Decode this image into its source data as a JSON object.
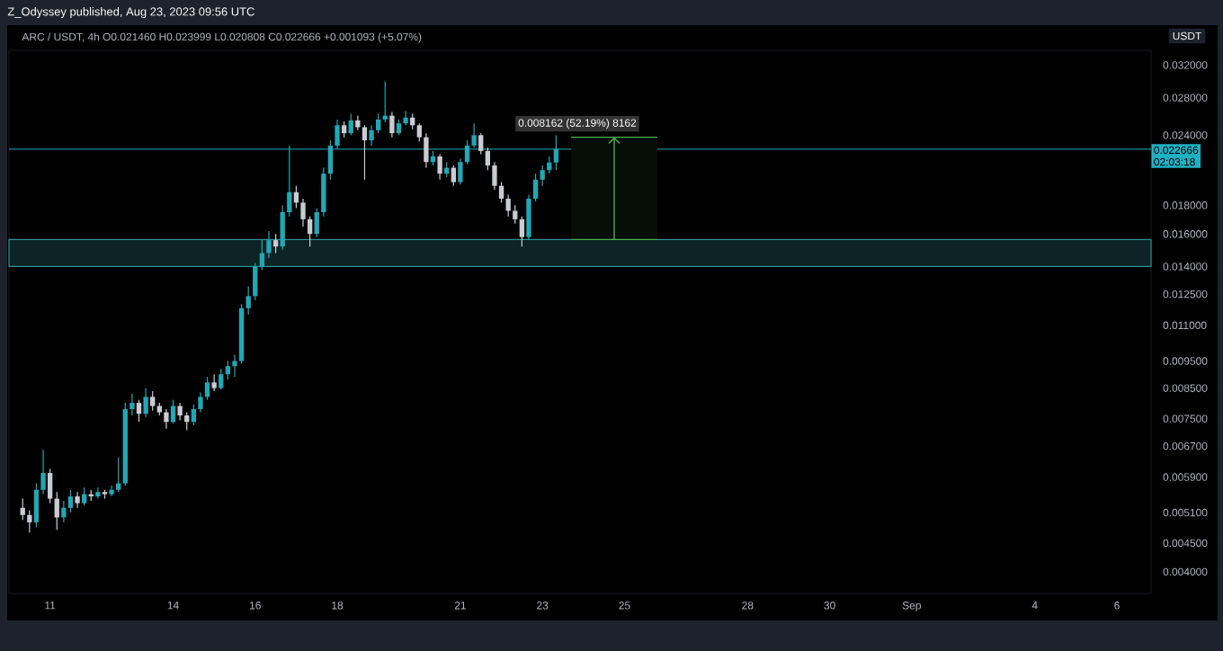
{
  "chart_data": {
    "type": "candlestick",
    "title": "Z_Odyssey published, Aug 23, 2023 09:56 UTC",
    "subtitle": "ARC / USDT, 4h  O0.021460  H0.023999  L0.020808  C0.022666  +0.001093 (+5.07%)",
    "ylabel": "USDT",
    "log": true,
    "x": [
      "2023-08-10T08:00",
      "2023-08-10T12:00",
      "2023-08-10T16:00",
      "2023-08-10T20:00",
      "2023-08-11T00:00",
      "2023-08-11T04:00",
      "2023-08-11T08:00",
      "2023-08-11T12:00",
      "2023-08-11T16:00",
      "2023-08-11T20:00",
      "2023-08-12T00:00",
      "2023-08-12T04:00",
      "2023-08-12T08:00",
      "2023-08-12T12:00",
      "2023-08-12T16:00",
      "2023-08-12T20:00",
      "2023-08-13T00:00",
      "2023-08-13T04:00",
      "2023-08-13T08:00",
      "2023-08-13T12:00",
      "2023-08-13T16:00",
      "2023-08-13T20:00",
      "2023-08-14T00:00",
      "2023-08-14T04:00",
      "2023-08-14T08:00",
      "2023-08-14T12:00",
      "2023-08-14T16:00",
      "2023-08-14T20:00",
      "2023-08-15T00:00",
      "2023-08-15T04:00",
      "2023-08-15T08:00",
      "2023-08-15T12:00",
      "2023-08-15T16:00",
      "2023-08-15T20:00",
      "2023-08-16T00:00",
      "2023-08-16T04:00",
      "2023-08-16T08:00",
      "2023-08-16T12:00",
      "2023-08-16T16:00",
      "2023-08-16T20:00",
      "2023-08-17T00:00",
      "2023-08-17T04:00",
      "2023-08-17T08:00",
      "2023-08-17T12:00",
      "2023-08-17T16:00",
      "2023-08-17T20:00",
      "2023-08-18T00:00",
      "2023-08-18T04:00",
      "2023-08-18T08:00",
      "2023-08-18T12:00",
      "2023-08-18T16:00",
      "2023-08-18T20:00",
      "2023-08-19T00:00",
      "2023-08-19T04:00",
      "2023-08-19T08:00",
      "2023-08-19T12:00",
      "2023-08-19T16:00",
      "2023-08-19T20:00",
      "2023-08-20T00:00",
      "2023-08-20T04:00",
      "2023-08-20T08:00",
      "2023-08-20T12:00",
      "2023-08-20T16:00",
      "2023-08-20T20:00",
      "2023-08-21T00:00",
      "2023-08-21T04:00",
      "2023-08-21T08:00",
      "2023-08-21T12:00",
      "2023-08-21T16:00",
      "2023-08-21T20:00",
      "2023-08-22T00:00",
      "2023-08-22T04:00",
      "2023-08-22T08:00",
      "2023-08-22T12:00",
      "2023-08-22T16:00",
      "2023-08-22T20:00",
      "2023-08-23T00:00",
      "2023-08-23T04:00",
      "2023-08-23T08:00"
    ],
    "ohlc": [
      [
        0.0052,
        0.0054,
        0.00495,
        0.00505
      ],
      [
        0.00505,
        0.00515,
        0.0047,
        0.0049
      ],
      [
        0.0049,
        0.00575,
        0.0048,
        0.0056
      ],
      [
        0.0056,
        0.0066,
        0.0055,
        0.006
      ],
      [
        0.006,
        0.0061,
        0.0053,
        0.0054
      ],
      [
        0.0054,
        0.00555,
        0.00475,
        0.005
      ],
      [
        0.005,
        0.00535,
        0.0049,
        0.0052
      ],
      [
        0.0052,
        0.0056,
        0.0051,
        0.00545
      ],
      [
        0.00545,
        0.00555,
        0.0052,
        0.0053
      ],
      [
        0.0053,
        0.00565,
        0.00525,
        0.0055
      ],
      [
        0.0055,
        0.0056,
        0.00535,
        0.00545
      ],
      [
        0.00545,
        0.00565,
        0.0054,
        0.00555
      ],
      [
        0.00555,
        0.0056,
        0.0054,
        0.0055
      ],
      [
        0.0055,
        0.0057,
        0.00545,
        0.0056
      ],
      [
        0.0056,
        0.0064,
        0.00555,
        0.00575
      ],
      [
        0.00575,
        0.008,
        0.0057,
        0.0078
      ],
      [
        0.0078,
        0.0083,
        0.0076,
        0.008
      ],
      [
        0.008,
        0.0081,
        0.0074,
        0.00765
      ],
      [
        0.00765,
        0.0085,
        0.00755,
        0.0082
      ],
      [
        0.0082,
        0.0084,
        0.00775,
        0.0079
      ],
      [
        0.0079,
        0.008,
        0.0076,
        0.0077
      ],
      [
        0.0077,
        0.0078,
        0.0072,
        0.0074
      ],
      [
        0.0074,
        0.0081,
        0.00735,
        0.0079
      ],
      [
        0.0079,
        0.008,
        0.00745,
        0.0076
      ],
      [
        0.0076,
        0.0077,
        0.00715,
        0.0074
      ],
      [
        0.0074,
        0.00795,
        0.0073,
        0.0078
      ],
      [
        0.0078,
        0.00835,
        0.0077,
        0.0082
      ],
      [
        0.0082,
        0.0089,
        0.0081,
        0.0087
      ],
      [
        0.0087,
        0.009,
        0.0084,
        0.0085
      ],
      [
        0.0085,
        0.0092,
        0.00845,
        0.009
      ],
      [
        0.009,
        0.0095,
        0.0088,
        0.0093
      ],
      [
        0.0093,
        0.00975,
        0.0089,
        0.0095
      ],
      [
        0.0095,
        0.012,
        0.0094,
        0.0118
      ],
      [
        0.0118,
        0.0129,
        0.0115,
        0.0124
      ],
      [
        0.0124,
        0.0142,
        0.0122,
        0.014
      ],
      [
        0.014,
        0.0156,
        0.0138,
        0.0148
      ],
      [
        0.0148,
        0.0162,
        0.0145,
        0.0156
      ],
      [
        0.0156,
        0.016,
        0.0148,
        0.0152
      ],
      [
        0.0152,
        0.018,
        0.015,
        0.0175
      ],
      [
        0.0175,
        0.023,
        0.0172,
        0.019
      ],
      [
        0.019,
        0.0195,
        0.0178,
        0.0182
      ],
      [
        0.0182,
        0.0185,
        0.0165,
        0.017
      ],
      [
        0.017,
        0.0172,
        0.0152,
        0.016
      ],
      [
        0.016,
        0.0178,
        0.0158,
        0.0175
      ],
      [
        0.0175,
        0.021,
        0.0172,
        0.0205
      ],
      [
        0.0205,
        0.0235,
        0.02,
        0.023
      ],
      [
        0.023,
        0.0256,
        0.0227,
        0.025
      ],
      [
        0.025,
        0.0254,
        0.0238,
        0.0242
      ],
      [
        0.0242,
        0.0262,
        0.024,
        0.0255
      ],
      [
        0.0255,
        0.026,
        0.0245,
        0.0248
      ],
      [
        0.0248,
        0.025,
        0.02,
        0.0235
      ],
      [
        0.0235,
        0.025,
        0.023,
        0.0245
      ],
      [
        0.0245,
        0.0262,
        0.0242,
        0.0256
      ],
      [
        0.0256,
        0.0299,
        0.0253,
        0.026
      ],
      [
        0.026,
        0.0264,
        0.0238,
        0.0242
      ],
      [
        0.0242,
        0.0256,
        0.024,
        0.0252
      ],
      [
        0.0252,
        0.0265,
        0.025,
        0.0258
      ],
      [
        0.0258,
        0.0262,
        0.0246,
        0.025
      ],
      [
        0.025,
        0.0252,
        0.0234,
        0.0238
      ],
      [
        0.0238,
        0.0242,
        0.021,
        0.0215
      ],
      [
        0.0215,
        0.0225,
        0.0212,
        0.022
      ],
      [
        0.022,
        0.0222,
        0.02,
        0.0205
      ],
      [
        0.0205,
        0.0215,
        0.0202,
        0.021
      ],
      [
        0.021,
        0.0212,
        0.0195,
        0.0198
      ],
      [
        0.0198,
        0.0218,
        0.0196,
        0.0215
      ],
      [
        0.0215,
        0.0235,
        0.0213,
        0.023
      ],
      [
        0.023,
        0.0252,
        0.0228,
        0.024
      ],
      [
        0.024,
        0.0242,
        0.0222,
        0.0225
      ],
      [
        0.0225,
        0.0228,
        0.0208,
        0.0212
      ],
      [
        0.0212,
        0.0215,
        0.0192,
        0.0195
      ],
      [
        0.0195,
        0.0198,
        0.0182,
        0.0185
      ],
      [
        0.0185,
        0.0188,
        0.0172,
        0.0176
      ],
      [
        0.0176,
        0.018,
        0.0167,
        0.017
      ],
      [
        0.017,
        0.0172,
        0.0152,
        0.0158
      ],
      [
        0.0158,
        0.0188,
        0.0156,
        0.0185
      ],
      [
        0.0185,
        0.0205,
        0.0183,
        0.02
      ],
      [
        0.02,
        0.0212,
        0.0195,
        0.0208
      ],
      [
        0.0208,
        0.022,
        0.0205,
        0.02146
      ],
      [
        0.02146,
        0.023999,
        0.020808,
        0.022666
      ]
    ],
    "colors": [
      "#c9ccd2",
      "#c9ccd2",
      "#22a7b5",
      "#22a7b5",
      "#c9ccd2",
      "#c9ccd2",
      "#22a7b5",
      "#22a7b5",
      "#c9ccd2",
      "#22a7b5",
      "#c9ccd2",
      "#22a7b5",
      "#c9ccd2",
      "#22a7b5",
      "#22a7b5",
      "#22a7b5",
      "#22a7b5",
      "#c9ccd2",
      "#22a7b5",
      "#c9ccd2",
      "#c9ccd2",
      "#c9ccd2",
      "#22a7b5",
      "#c9ccd2",
      "#c9ccd2",
      "#22a7b5",
      "#22a7b5",
      "#22a7b5",
      "#c9ccd2",
      "#22a7b5",
      "#22a7b5",
      "#22a7b5",
      "#22a7b5",
      "#22a7b5",
      "#22a7b5",
      "#22a7b5",
      "#22a7b5",
      "#c9ccd2",
      "#22a7b5",
      "#22a7b5",
      "#c9ccd2",
      "#c9ccd2",
      "#c9ccd2",
      "#22a7b5",
      "#22a7b5",
      "#22a7b5",
      "#22a7b5",
      "#c9ccd2",
      "#22a7b5",
      "#c9ccd2",
      "#c9ccd2",
      "#22a7b5",
      "#22a7b5",
      "#22a7b5",
      "#c9ccd2",
      "#22a7b5",
      "#22a7b5",
      "#c9ccd2",
      "#c9ccd2",
      "#c9ccd2",
      "#22a7b5",
      "#c9ccd2",
      "#22a7b5",
      "#c9ccd2",
      "#22a7b5",
      "#22a7b5",
      "#22a7b5",
      "#c9ccd2",
      "#c9ccd2",
      "#c9ccd2",
      "#c9ccd2",
      "#c9ccd2",
      "#c9ccd2",
      "#c9ccd2",
      "#22a7b5",
      "#22a7b5",
      "#22a7b5",
      "#22a7b5",
      "#22a7b5"
    ],
    "xlim": [
      "2023-08-10T00:00",
      "2023-09-06T20:00"
    ],
    "xticks": [
      {
        "value": "2023-08-11",
        "label": "11"
      },
      {
        "value": "2023-08-14",
        "label": "14"
      },
      {
        "value": "2023-08-16",
        "label": "16"
      },
      {
        "value": "2023-08-18",
        "label": "18"
      },
      {
        "value": "2023-08-21",
        "label": "21"
      },
      {
        "value": "2023-08-23",
        "label": "23"
      },
      {
        "value": "2023-08-25",
        "label": "25"
      },
      {
        "value": "2023-08-28",
        "label": "28"
      },
      {
        "value": "2023-08-30",
        "label": "30"
      },
      {
        "value": "2023-09-01",
        "label": "Sep"
      },
      {
        "value": "2023-09-04",
        "label": "4"
      },
      {
        "value": "2023-09-06",
        "label": "6"
      }
    ],
    "ylim": [
      0.00366,
      0.034
    ],
    "yticks": [
      {
        "value": 0.004,
        "label": "0.004000"
      },
      {
        "value": 0.0045,
        "label": "0.004500"
      },
      {
        "value": 0.0051,
        "label": "0.005100"
      },
      {
        "value": 0.0059,
        "label": "0.005900"
      },
      {
        "value": 0.0067,
        "label": "0.006700"
      },
      {
        "value": 0.0075,
        "label": "0.007500"
      },
      {
        "value": 0.0085,
        "label": "0.008500"
      },
      {
        "value": 0.0095,
        "label": "0.009500"
      },
      {
        "value": 0.011,
        "label": "0.011000"
      },
      {
        "value": 0.0125,
        "label": "0.012500"
      },
      {
        "value": 0.014,
        "label": "0.014000"
      },
      {
        "value": 0.016,
        "label": "0.016000"
      },
      {
        "value": 0.018,
        "label": "0.018000"
      },
      {
        "value": 0.024,
        "label": "0.024000"
      },
      {
        "value": 0.028,
        "label": "0.028000"
      },
      {
        "value": 0.032,
        "label": "0.032000"
      }
    ],
    "bands": [
      {
        "axis": "y",
        "from": 0.014,
        "to": 0.01564,
        "color": "#2f8f96"
      }
    ],
    "ref_lines": [
      {
        "axis": "y",
        "value": 0.022666,
        "label": "0.022666",
        "color": "#1fb0c2"
      }
    ],
    "annotations": [
      {
        "text": "0.008162 (52.19%) 8162",
        "x": "2023-08-24T18:00",
        "y": 0.0238
      },
      "02:03:18"
    ]
  }
}
